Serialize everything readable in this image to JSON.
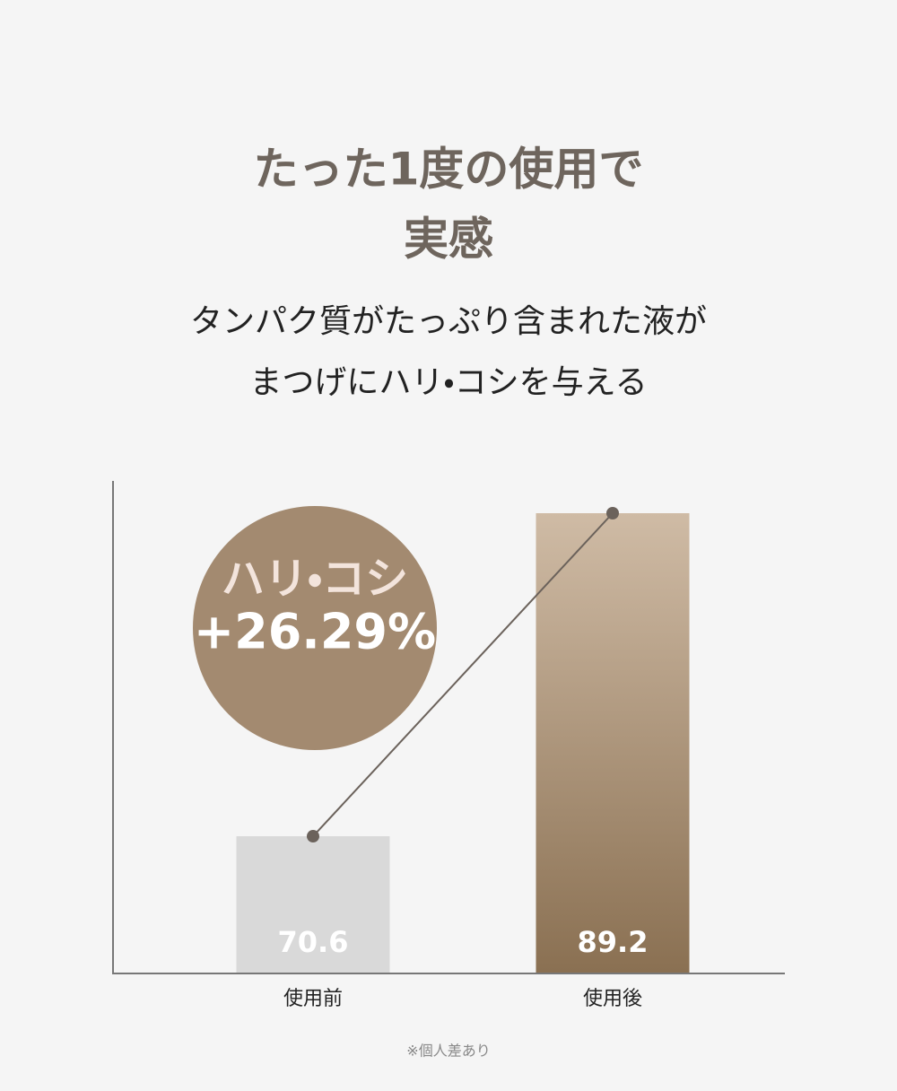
{
  "title": [
    "たった1度の使用で",
    "実感"
  ],
  "subtitle": [
    "タンパク質がたっぷり含まれた液が",
    "まつげにハリ・コシを与える"
  ],
  "chart_data": {
    "type": "bar",
    "categories": [
      "使用前",
      "使用後"
    ],
    "values": [
      70.6,
      89.2
    ],
    "ylim": [
      62.75,
      91.06
    ],
    "colors": [
      {
        "top": "#d9d9d9",
        "bottom": "#d9d9d9"
      },
      {
        "top": "#cfbba5",
        "bottom": "#8a7052"
      }
    ],
    "connector_line": true,
    "badge": [
      "ハリ・コシ",
      "+26.29%"
    ]
  },
  "note": "※個人差あり"
}
